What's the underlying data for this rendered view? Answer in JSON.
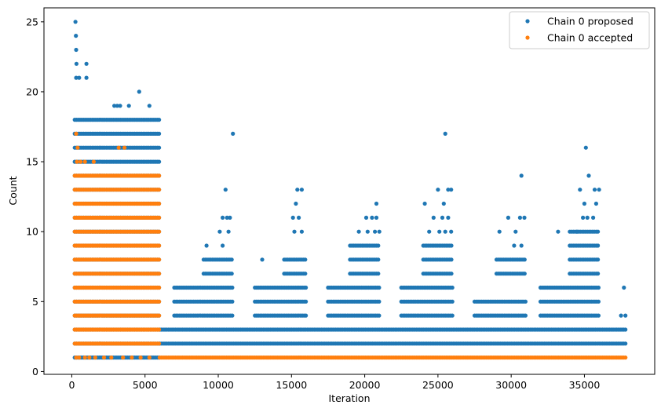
{
  "chart_data": {
    "type": "scatter",
    "title": "",
    "xlabel": "Iteration",
    "ylabel": "Count",
    "xlim": [
      -1900,
      39800
    ],
    "ylim": [
      -0.2,
      26
    ],
    "x_ticks": [
      0,
      5000,
      10000,
      15000,
      20000,
      25000,
      30000,
      35000
    ],
    "x_tick_labels": [
      "0",
      "5000",
      "10000",
      "15000",
      "20000",
      "25000",
      "30000",
      "35000"
    ],
    "y_ticks": [
      0,
      5,
      10,
      15,
      20,
      25
    ],
    "y_tick_labels": [
      "0",
      "5",
      "10",
      "15",
      "20",
      "25"
    ],
    "grid": false,
    "legend_position": "top-right",
    "marker": "circle",
    "series": [
      {
        "name": "Chain 0 proposed",
        "color": "#1f77b4",
        "segments": [
          {
            "x_range": [
              200,
              6000
            ],
            "y_values": [
              1,
              2,
              3,
              4,
              5,
              6,
              7,
              8,
              9,
              10,
              11,
              12,
              13,
              14,
              15,
              16,
              17,
              18
            ]
          },
          {
            "x_range": [
              6000,
              37800
            ],
            "y_values": [
              2,
              3
            ]
          },
          {
            "x_range": [
              7000,
              11000
            ],
            "y_values": [
              4,
              5,
              6
            ]
          },
          {
            "x_range": [
              12500,
              16000
            ],
            "y_values": [
              4,
              5,
              6
            ]
          },
          {
            "x_range": [
              17500,
              21000
            ],
            "y_values": [
              4,
              5,
              6
            ]
          },
          {
            "x_range": [
              22500,
              26000
            ],
            "y_values": [
              4,
              5,
              6
            ]
          },
          {
            "x_range": [
              27500,
              31000
            ],
            "y_values": [
              4,
              5
            ]
          },
          {
            "x_range": [
              32000,
              36000
            ],
            "y_values": [
              4,
              5,
              6
            ]
          },
          {
            "x_range": [
              9000,
              11000
            ],
            "y_values": [
              7,
              8
            ]
          },
          {
            "x_range": [
              14500,
              16000
            ],
            "y_values": [
              7,
              8
            ]
          },
          {
            "x_range": [
              19000,
              21000
            ],
            "y_values": [
              7,
              8,
              9
            ]
          },
          {
            "x_range": [
              24000,
              26000
            ],
            "y_values": [
              7,
              8,
              9
            ]
          },
          {
            "x_range": [
              29000,
              31000
            ],
            "y_values": [
              7,
              8
            ]
          },
          {
            "x_range": [
              34000,
              36000
            ],
            "y_values": [
              7,
              8,
              9,
              10
            ]
          }
        ],
        "points": [
          {
            "x": 250,
            "y": 25
          },
          {
            "x": 280,
            "y": 24
          },
          {
            "x": 300,
            "y": 23
          },
          {
            "x": 320,
            "y": 22
          },
          {
            "x": 1000,
            "y": 22
          },
          {
            "x": 300,
            "y": 21
          },
          {
            "x": 500,
            "y": 21
          },
          {
            "x": 1000,
            "y": 21
          },
          {
            "x": 4600,
            "y": 20
          },
          {
            "x": 2900,
            "y": 19
          },
          {
            "x": 3100,
            "y": 19
          },
          {
            "x": 3300,
            "y": 19
          },
          {
            "x": 3900,
            "y": 19
          },
          {
            "x": 5300,
            "y": 19
          },
          {
            "x": 11000,
            "y": 17
          },
          {
            "x": 25500,
            "y": 17
          },
          {
            "x": 35100,
            "y": 16
          },
          {
            "x": 30700,
            "y": 14
          },
          {
            "x": 35300,
            "y": 14
          },
          {
            "x": 10500,
            "y": 13
          },
          {
            "x": 15400,
            "y": 13
          },
          {
            "x": 15700,
            "y": 13
          },
          {
            "x": 25000,
            "y": 13
          },
          {
            "x": 25700,
            "y": 13
          },
          {
            "x": 25900,
            "y": 13
          },
          {
            "x": 34700,
            "y": 13
          },
          {
            "x": 35700,
            "y": 13
          },
          {
            "x": 36000,
            "y": 13
          },
          {
            "x": 15300,
            "y": 12
          },
          {
            "x": 20800,
            "y": 12
          },
          {
            "x": 24100,
            "y": 12
          },
          {
            "x": 25400,
            "y": 12
          },
          {
            "x": 35000,
            "y": 12
          },
          {
            "x": 35800,
            "y": 12
          },
          {
            "x": 10300,
            "y": 11
          },
          {
            "x": 10600,
            "y": 11
          },
          {
            "x": 10800,
            "y": 11
          },
          {
            "x": 15100,
            "y": 11
          },
          {
            "x": 15500,
            "y": 11
          },
          {
            "x": 20100,
            "y": 11
          },
          {
            "x": 20500,
            "y": 11
          },
          {
            "x": 20800,
            "y": 11
          },
          {
            "x": 24700,
            "y": 11
          },
          {
            "x": 25300,
            "y": 11
          },
          {
            "x": 25700,
            "y": 11
          },
          {
            "x": 29800,
            "y": 11
          },
          {
            "x": 30600,
            "y": 11
          },
          {
            "x": 30900,
            "y": 11
          },
          {
            "x": 34900,
            "y": 11
          },
          {
            "x": 35200,
            "y": 11
          },
          {
            "x": 35600,
            "y": 11
          },
          {
            "x": 10100,
            "y": 10
          },
          {
            "x": 10700,
            "y": 10
          },
          {
            "x": 15200,
            "y": 10
          },
          {
            "x": 15700,
            "y": 10
          },
          {
            "x": 19600,
            "y": 10
          },
          {
            "x": 20200,
            "y": 10
          },
          {
            "x": 20700,
            "y": 10
          },
          {
            "x": 21000,
            "y": 10
          },
          {
            "x": 24400,
            "y": 10
          },
          {
            "x": 25100,
            "y": 10
          },
          {
            "x": 25500,
            "y": 10
          },
          {
            "x": 25900,
            "y": 10
          },
          {
            "x": 29200,
            "y": 10
          },
          {
            "x": 30300,
            "y": 10
          },
          {
            "x": 33200,
            "y": 10
          },
          {
            "x": 34500,
            "y": 10
          },
          {
            "x": 9200,
            "y": 9
          },
          {
            "x": 10300,
            "y": 9
          },
          {
            "x": 13000,
            "y": 8
          },
          {
            "x": 30200,
            "y": 9
          },
          {
            "x": 30700,
            "y": 9
          },
          {
            "x": 37700,
            "y": 6
          },
          {
            "x": 37500,
            "y": 4
          },
          {
            "x": 37800,
            "y": 4
          }
        ]
      },
      {
        "name": "Chain 0 accepted",
        "color": "#ff7f0e",
        "segments": [
          {
            "x_range": [
              200,
              6000
            ],
            "y_values": [
              2,
              3,
              4,
              5,
              6,
              7,
              8,
              9,
              10,
              11,
              12,
              13,
              14
            ]
          },
          {
            "x_range": [
              6000,
              37800
            ],
            "y_values": [
              1
            ]
          }
        ],
        "points": [
          {
            "x": 300,
            "y": 17
          },
          {
            "x": 400,
            "y": 16
          },
          {
            "x": 3200,
            "y": 16
          },
          {
            "x": 3600,
            "y": 16
          },
          {
            "x": 350,
            "y": 15
          },
          {
            "x": 600,
            "y": 15
          },
          {
            "x": 900,
            "y": 15
          },
          {
            "x": 1500,
            "y": 15
          },
          {
            "x": 300,
            "y": 1
          },
          {
            "x": 500,
            "y": 1
          },
          {
            "x": 900,
            "y": 1
          },
          {
            "x": 1200,
            "y": 1
          },
          {
            "x": 1600,
            "y": 1
          },
          {
            "x": 2200,
            "y": 1
          },
          {
            "x": 2700,
            "y": 1
          },
          {
            "x": 3500,
            "y": 1
          },
          {
            "x": 4100,
            "y": 1
          },
          {
            "x": 4700,
            "y": 1
          },
          {
            "x": 5300,
            "y": 1
          }
        ]
      }
    ]
  }
}
